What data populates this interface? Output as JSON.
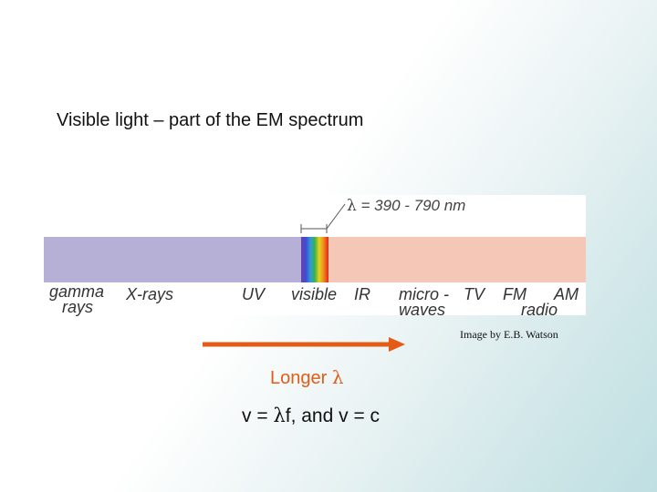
{
  "title": "Visible light – part of the EM spectrum",
  "spectrum": {
    "lambda_symbol": "λ",
    "lambda_range": "= 390 - 790 nm",
    "labels": {
      "gamma": "gamma",
      "rays": "rays",
      "xrays": "X-rays",
      "uv": "UV",
      "visible": "visible",
      "ir": "IR",
      "micro": "micro -",
      "waves": "waves",
      "tv": "TV",
      "fm": "FM",
      "am": "AM",
      "radio": "radio"
    },
    "colors": {
      "short_band": "#b7b0d6",
      "long_band": "#f5c7b7"
    }
  },
  "credit": "Image by E.B. Watson",
  "arrow": {
    "color": "#e35b15",
    "label_prefix": "Longer ",
    "label_symbol": "λ"
  },
  "equation": {
    "part1": "v = ",
    "lambda": "λ",
    "part2": "f, and v = c"
  }
}
